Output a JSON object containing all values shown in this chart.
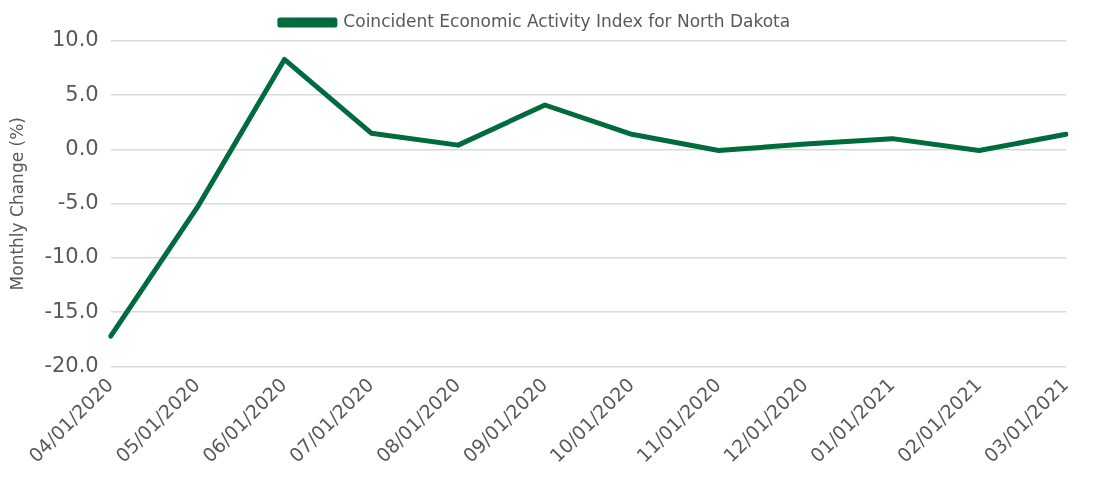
{
  "chart_data": {
    "type": "line",
    "ylabel": "Monthly Change (%)",
    "categories": [
      "04/01/2020",
      "05/01/2020",
      "06/01/2020",
      "07/01/2020",
      "08/01/2020",
      "09/01/2020",
      "10/01/2020",
      "11/01/2020",
      "12/01/2020",
      "01/01/2021",
      "02/01/2021",
      "03/01/2021"
    ],
    "series": [
      {
        "name": "Coincident Economic Activity Index for North Dakota",
        "color": "#006b3c",
        "values": [
          -17.2,
          -5.3,
          8.3,
          1.5,
          0.4,
          4.1,
          1.4,
          -0.1,
          0.5,
          1.0,
          -0.1,
          1.4
        ]
      }
    ],
    "ylim": [
      -20,
      10
    ],
    "yticks": [
      {
        "value": -20,
        "label": "-20.0"
      },
      {
        "value": -15,
        "label": "-15.0"
      },
      {
        "value": -10,
        "label": "-10.0"
      },
      {
        "value": -5,
        "label": "-5.0"
      },
      {
        "value": 0,
        "label": "0.0"
      },
      {
        "value": 5,
        "label": "5.0"
      },
      {
        "value": 10,
        "label": "10.0"
      }
    ],
    "grid": "y",
    "legend": "top",
    "marker": "none",
    "line_style": "solid"
  }
}
